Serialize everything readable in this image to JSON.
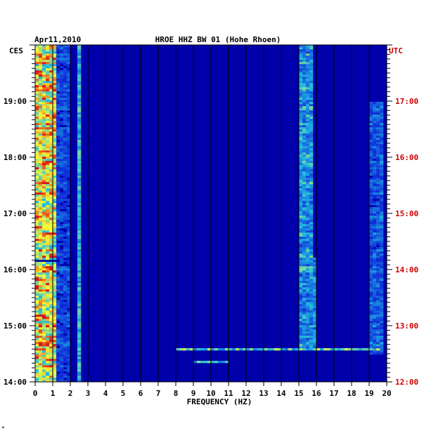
{
  "chart_data": {
    "type": "heatmap",
    "date": "Apr11,2010",
    "title": "HROE HHZ BW 01 (Hohe Rhoen)",
    "left_axis_label": "CES",
    "right_axis_label": "UTC",
    "xlabel": "FREQUENCY (HZ)",
    "xlim": [
      0,
      20
    ],
    "x_ticks": [
      "0",
      "1",
      "2",
      "3",
      "4",
      "5",
      "6",
      "7",
      "8",
      "9",
      "10",
      "11",
      "12",
      "13",
      "14",
      "15",
      "16",
      "17",
      "18",
      "19",
      "20"
    ],
    "left_y_ticks": [
      {
        "label": "19:00",
        "hour": 19
      },
      {
        "label": "18:00",
        "hour": 18
      },
      {
        "label": "17:00",
        "hour": 17
      },
      {
        "label": "16:00",
        "hour": 16
      },
      {
        "label": "15:00",
        "hour": 15
      },
      {
        "label": "14:00",
        "hour": 14
      }
    ],
    "right_y_ticks": [
      {
        "label": "17:00",
        "hour": 19
      },
      {
        "label": "16:00",
        "hour": 18
      },
      {
        "label": "15:00",
        "hour": 17
      },
      {
        "label": "14:00",
        "hour": 16
      },
      {
        "label": "13:00",
        "hour": 15
      },
      {
        "label": "12:00",
        "hour": 14
      }
    ],
    "time_range_ces": [
      14,
      20
    ],
    "colors": {
      "background": "#0000aa",
      "low": "#1030d0",
      "mid": "#20c0e0",
      "high": "#ffff30",
      "peak": "#e01010",
      "right_axis": "#cc0000"
    },
    "features": [
      {
        "kind": "band",
        "f_from": 0.1,
        "f_to": 1.2,
        "intensity": 0.95
      },
      {
        "kind": "band",
        "f_from": 1.2,
        "f_to": 2.0,
        "intensity": 0.35
      },
      {
        "kind": "line",
        "f": 2.5,
        "intensity": 0.6
      },
      {
        "kind": "band",
        "f_from": 15.0,
        "f_to": 15.8,
        "t_from": 16.0,
        "t_to": 20.0,
        "intensity": 0.55
      },
      {
        "kind": "band",
        "f_from": 15.0,
        "f_to": 16.0,
        "t_from": 14.6,
        "t_to": 16.2,
        "intensity": 0.5
      },
      {
        "kind": "band",
        "f_from": 19.0,
        "f_to": 19.8,
        "t_from": 14.5,
        "t_to": 19.0,
        "intensity": 0.4
      },
      {
        "kind": "event",
        "t": 14.58,
        "f_from": 8.0,
        "f_to": 19.5,
        "intensity": 0.7
      },
      {
        "kind": "event",
        "t": 14.36,
        "f_from": 9.0,
        "f_to": 11.0,
        "intensity": 0.6
      },
      {
        "kind": "event",
        "t": 16.15,
        "f_from": 0.0,
        "f_to": 1.3,
        "intensity": 0.1
      }
    ]
  }
}
